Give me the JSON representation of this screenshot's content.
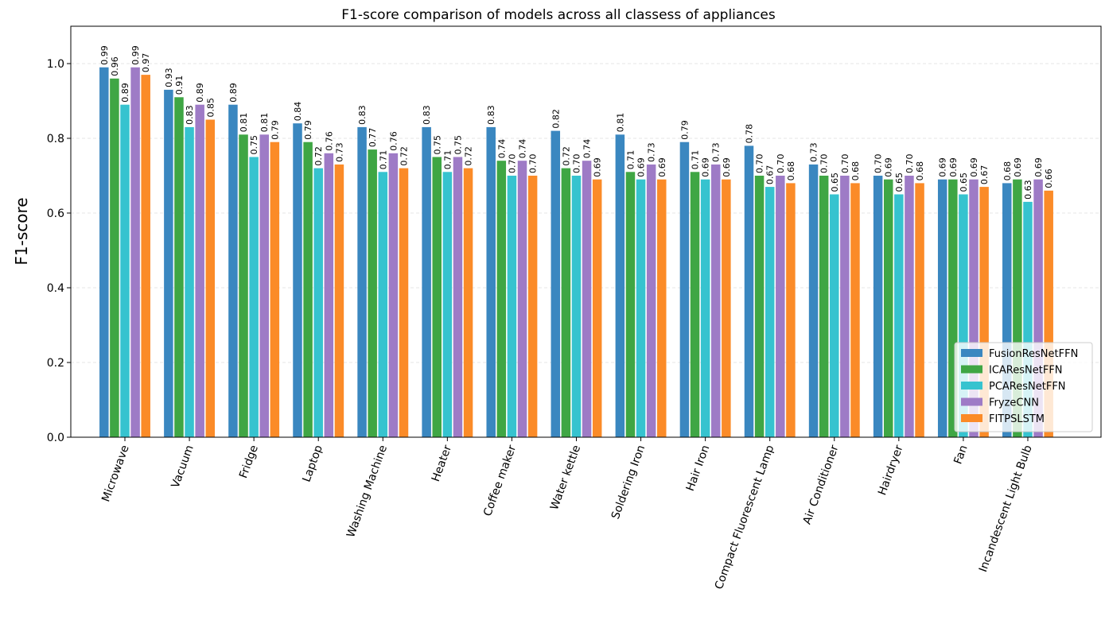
{
  "chart_data": {
    "type": "bar",
    "title": "F1-score comparison of models across all classess of appliances",
    "xlabel": "",
    "ylabel": "F1-score",
    "ylim": [
      0,
      1.1
    ],
    "yticks": [
      0.0,
      0.2,
      0.4,
      0.6,
      0.8,
      1.0
    ],
    "ytick_labels": [
      "0.0",
      "0.2",
      "0.4",
      "0.6",
      "0.8",
      "1.0"
    ],
    "grid": "horizontal dashed",
    "legend_position": "lower right",
    "categories": [
      "Microwave",
      "Vacuum",
      "Fridge",
      "Laptop",
      "Washing Machine",
      "Heater",
      "Coffee maker",
      "Water kettle",
      "Soldering Iron",
      "Hair Iron",
      "Compact Fluorescent Lamp",
      "Air Conditioner",
      "Hairdryer",
      "Fan",
      "Incandescent Light Bulb"
    ],
    "series": [
      {
        "name": "FusionResNetFFN",
        "color": "#3a87c0",
        "values": [
          0.99,
          0.93,
          0.89,
          0.84,
          0.83,
          0.83,
          0.83,
          0.82,
          0.81,
          0.79,
          0.78,
          0.73,
          0.7,
          0.69,
          0.68
        ],
        "labels": [
          "0.99",
          "0.93",
          "0.89",
          "0.84",
          "0.83",
          "0.83",
          "0.83",
          "0.82",
          "0.81",
          "0.79",
          "0.78",
          "0.73",
          "0.70",
          "0.69",
          "0.68"
        ]
      },
      {
        "name": "ICAResNetFFN",
        "color": "#3fa644",
        "values": [
          0.96,
          0.91,
          0.81,
          0.79,
          0.77,
          0.75,
          0.74,
          0.72,
          0.71,
          0.71,
          0.7,
          0.7,
          0.69,
          0.69,
          0.69
        ],
        "labels": [
          "0.96",
          "0.91",
          "0.81",
          "0.79",
          "0.77",
          "0.75",
          "0.74",
          "0.72",
          "0.71",
          "0.71",
          "0.70",
          "0.70",
          "0.69",
          "0.69",
          "0.69"
        ]
      },
      {
        "name": "PCAResNetFFN",
        "color": "#36c3cf",
        "values": [
          0.89,
          0.83,
          0.75,
          0.72,
          0.71,
          0.71,
          0.7,
          0.7,
          0.69,
          0.69,
          0.67,
          0.65,
          0.65,
          0.65,
          0.63
        ],
        "labels": [
          "0.89",
          "0.83",
          "0.75",
          "0.72",
          "0.71",
          "0.71",
          "0.70",
          "0.70",
          "0.69",
          "0.69",
          "0.67",
          "0.65",
          "0.65",
          "0.65",
          "0.63"
        ]
      },
      {
        "name": "FryzeCNN",
        "color": "#9e7bc6",
        "values": [
          0.99,
          0.89,
          0.81,
          0.76,
          0.76,
          0.75,
          0.74,
          0.74,
          0.73,
          0.73,
          0.7,
          0.7,
          0.7,
          0.69,
          0.69
        ],
        "labels": [
          "0.99",
          "0.89",
          "0.81",
          "0.76",
          "0.76",
          "0.75",
          "0.74",
          "0.74",
          "0.73",
          "0.73",
          "0.70",
          "0.70",
          "0.70",
          "0.69",
          "0.69"
        ]
      },
      {
        "name": "FITPSLSTM",
        "color": "#fb8b28",
        "values": [
          0.97,
          0.85,
          0.79,
          0.73,
          0.72,
          0.72,
          0.7,
          0.69,
          0.69,
          0.69,
          0.68,
          0.68,
          0.68,
          0.67,
          0.66
        ],
        "labels": [
          "0.97",
          "0.85",
          "0.79",
          "0.73",
          "0.72",
          "0.72",
          "0.70",
          "0.69",
          "0.69",
          "0.69",
          "0.68",
          "0.68",
          "0.68",
          "0.67",
          "0.66"
        ]
      }
    ]
  }
}
